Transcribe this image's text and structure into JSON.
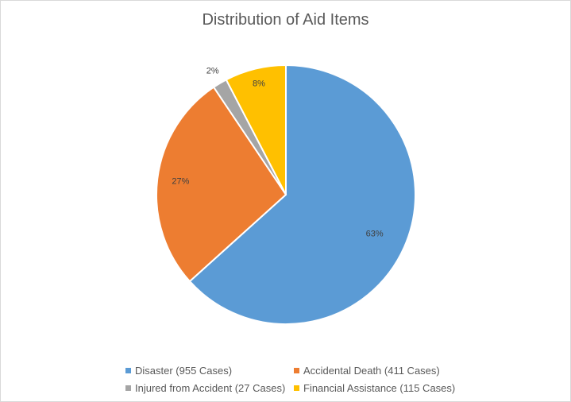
{
  "chart_data": {
    "type": "pie",
    "title": "Distribution of Aid Items",
    "slices": [
      {
        "label": "Disaster (955 Cases)",
        "value": 955,
        "percent_label": "63%",
        "color": "#5B9BD5"
      },
      {
        "label": "Accidental Death (411 Cases)",
        "value": 411,
        "percent_label": "27%",
        "color": "#ED7D31"
      },
      {
        "label": "Injured from Accident (27 Cases)",
        "value": 27,
        "percent_label": "2%",
        "color": "#A5A5A5"
      },
      {
        "label": "Financial Assistance (115 Cases)",
        "value": 115,
        "percent_label": "8%",
        "color": "#FFC000"
      }
    ],
    "legend_position": "bottom"
  }
}
